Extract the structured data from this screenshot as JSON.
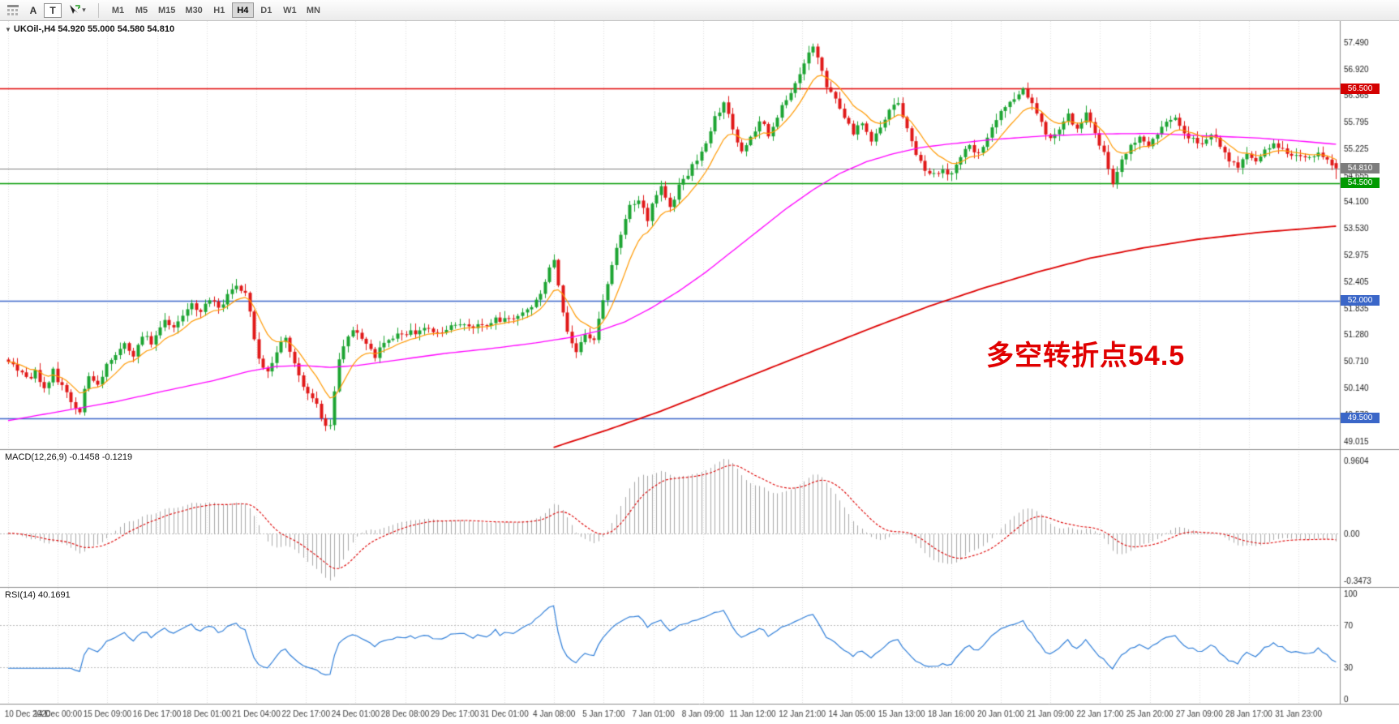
{
  "toolbar": {
    "grid_icon": "chart-list-grid",
    "annotate_button": "A",
    "text_button": "T",
    "cursor_caret": "▾",
    "timeframes": [
      "M1",
      "M5",
      "M15",
      "M30",
      "H1",
      "H4",
      "D1",
      "W1",
      "MN"
    ],
    "active_timeframe": "H4"
  },
  "chart": {
    "title_caret": "▼",
    "title": "UKOil-,H4 54.920 55.000 54.580 54.810",
    "annotation": {
      "text": "多空转折点54.5",
      "color": "#e00000"
    },
    "last_candle": {
      "open": 54.92,
      "high": 55.0,
      "low": 54.58,
      "close": 54.81
    }
  },
  "price_axis": {
    "ticks": [
      "57.490",
      "56.920",
      "56.365",
      "55.795",
      "55.225",
      "54.655",
      "54.100",
      "53.530",
      "52.975",
      "52.405",
      "51.835",
      "51.280",
      "50.710",
      "50.140",
      "49.570",
      "49.015"
    ],
    "badges": [
      {
        "label": "56.500",
        "value": 56.5,
        "bg": "#d40000"
      },
      {
        "label": "54.810",
        "value": 54.81,
        "bg": "#7d7d7d"
      },
      {
        "label": "54.500",
        "value": 54.5,
        "bg": "#009a00"
      },
      {
        "label": "52.000",
        "value": 52.0,
        "bg": "#3a66c8"
      },
      {
        "label": "49.500",
        "value": 49.5,
        "bg": "#3a66c8"
      }
    ]
  },
  "indicators": {
    "macd": {
      "label": "MACD(12,26,9) -0.1458 -0.1219",
      "params": {
        "fast": 12,
        "slow": 26,
        "signal": 9
      },
      "current_macd": -0.1458,
      "current_signal": -0.1219,
      "axis": {
        "max": "0.9604",
        "zero": "0.00",
        "min": "-0.3473"
      }
    },
    "rsi": {
      "label": "RSI(14) 40.1691",
      "period": 14,
      "current": 40.1691,
      "axis": [
        "100",
        "70",
        "30",
        "0"
      ],
      "levels": [
        70,
        30
      ]
    }
  },
  "time_axis": {
    "labels": [
      "10 Dec 2020",
      "14 Dec 00:00",
      "15 Dec 09:00",
      "16 Dec 17:00",
      "18 Dec 01:00",
      "21 Dec 04:00",
      "22 Dec 17:00",
      "24 Dec 01:00",
      "28 Dec 08:00",
      "29 Dec 17:00",
      "31 Dec 01:00",
      "4 Jan 08:00",
      "5 Jan 17:00",
      "7 Jan 01:00",
      "8 Jan 09:00",
      "11 Jan 12:00",
      "12 Jan 21:00",
      "14 Jan 05:00",
      "15 Jan 13:00",
      "18 Jan 16:00",
      "20 Jan 01:00",
      "21 Jan 09:00",
      "22 Jan 17:00",
      "25 Jan 20:00",
      "27 Jan 09:00",
      "28 Jan 17:00",
      "31 Jan 23:00"
    ]
  },
  "chart_data": {
    "type": "candlestick",
    "symbol": "UKOil-",
    "timeframe": "H4",
    "candles_count": 298,
    "seed": 20210131,
    "ylim": [
      49.015,
      57.49
    ],
    "price_path": [
      [
        0,
        50.7
      ],
      [
        2,
        50.55
      ],
      [
        4,
        50.35
      ],
      [
        6,
        50.45
      ],
      [
        8,
        50.15
      ],
      [
        10,
        50.5
      ],
      [
        12,
        50.15
      ],
      [
        14,
        49.9
      ],
      [
        16,
        49.62
      ],
      [
        17,
        50.05
      ],
      [
        18,
        50.4
      ],
      [
        20,
        50.2
      ],
      [
        22,
        50.6
      ],
      [
        24,
        50.9
      ],
      [
        26,
        51.05
      ],
      [
        28,
        50.85
      ],
      [
        30,
        51.25
      ],
      [
        32,
        51.1
      ],
      [
        33,
        51.3
      ],
      [
        35,
        51.55
      ],
      [
        37,
        51.4
      ],
      [
        39,
        51.65
      ],
      [
        41,
        51.9
      ],
      [
        43,
        51.75
      ],
      [
        45,
        52.0
      ],
      [
        47,
        51.85
      ],
      [
        49,
        52.1
      ],
      [
        51,
        52.28
      ],
      [
        53,
        52.15
      ],
      [
        54,
        51.75
      ],
      [
        56,
        50.7
      ],
      [
        58,
        50.45
      ],
      [
        60,
        50.95
      ],
      [
        62,
        51.2
      ],
      [
        63,
        50.9
      ],
      [
        65,
        50.45
      ],
      [
        66,
        50.15
      ],
      [
        68,
        49.9
      ],
      [
        70,
        49.55
      ],
      [
        71,
        49.28
      ],
      [
        72,
        49.4
      ],
      [
        73,
        50.1
      ],
      [
        74,
        50.75
      ],
      [
        76,
        51.3
      ],
      [
        78,
        51.35
      ],
      [
        80,
        51.05
      ],
      [
        82,
        50.8
      ],
      [
        84,
        51.1
      ],
      [
        86,
        51.25
      ],
      [
        89,
        51.3
      ],
      [
        93,
        51.4
      ],
      [
        97,
        51.3
      ],
      [
        100,
        51.5
      ],
      [
        104,
        51.45
      ],
      [
        108,
        51.55
      ],
      [
        111,
        51.6
      ],
      [
        114,
        51.7
      ],
      [
        117,
        51.85
      ],
      [
        119,
        52.15
      ],
      [
        121,
        52.7
      ],
      [
        122,
        52.9
      ],
      [
        123,
        52.3
      ],
      [
        125,
        51.3
      ],
      [
        127,
        50.9
      ],
      [
        129,
        51.25
      ],
      [
        131,
        51.15
      ],
      [
        133,
        51.95
      ],
      [
        135,
        52.75
      ],
      [
        137,
        53.4
      ],
      [
        139,
        53.95
      ],
      [
        141,
        54.2
      ],
      [
        143,
        53.75
      ],
      [
        144,
        54.1
      ],
      [
        146,
        54.45
      ],
      [
        148,
        54.0
      ],
      [
        150,
        54.4
      ],
      [
        152,
        54.7
      ],
      [
        154,
        54.95
      ],
      [
        156,
        55.4
      ],
      [
        158,
        55.85
      ],
      [
        160,
        56.2
      ],
      [
        162,
        55.6
      ],
      [
        164,
        55.2
      ],
      [
        166,
        55.45
      ],
      [
        168,
        55.8
      ],
      [
        170,
        55.55
      ],
      [
        172,
        55.95
      ],
      [
        174,
        56.25
      ],
      [
        176,
        56.65
      ],
      [
        178,
        57.05
      ],
      [
        180,
        57.4
      ],
      [
        181,
        57.2
      ],
      [
        183,
        56.55
      ],
      [
        185,
        56.3
      ],
      [
        187,
        55.9
      ],
      [
        189,
        55.5
      ],
      [
        191,
        55.8
      ],
      [
        193,
        55.35
      ],
      [
        195,
        55.7
      ],
      [
        197,
        56.05
      ],
      [
        199,
        56.2
      ],
      [
        201,
        55.6
      ],
      [
        203,
        55.1
      ],
      [
        205,
        54.8
      ],
      [
        207,
        54.65
      ],
      [
        209,
        54.75
      ],
      [
        211,
        54.7
      ],
      [
        213,
        55.1
      ],
      [
        215,
        55.3
      ],
      [
        217,
        55.15
      ],
      [
        219,
        55.5
      ],
      [
        221,
        55.85
      ],
      [
        223,
        56.1
      ],
      [
        225,
        56.3
      ],
      [
        227,
        56.45
      ],
      [
        229,
        56.2
      ],
      [
        231,
        55.75
      ],
      [
        233,
        55.4
      ],
      [
        235,
        55.7
      ],
      [
        237,
        55.95
      ],
      [
        239,
        55.6
      ],
      [
        241,
        56.0
      ],
      [
        243,
        55.55
      ],
      [
        245,
        55.2
      ],
      [
        247,
        54.45
      ],
      [
        249,
        55.0
      ],
      [
        251,
        55.25
      ],
      [
        253,
        55.45
      ],
      [
        255,
        55.3
      ],
      [
        257,
        55.5
      ],
      [
        259,
        55.75
      ],
      [
        261,
        55.85
      ],
      [
        263,
        55.55
      ],
      [
        265,
        55.4
      ],
      [
        267,
        55.3
      ],
      [
        269,
        55.5
      ],
      [
        271,
        55.25
      ],
      [
        273,
        55.0
      ],
      [
        275,
        54.9
      ],
      [
        277,
        55.1
      ],
      [
        279,
        54.95
      ],
      [
        281,
        55.15
      ],
      [
        283,
        55.3
      ],
      [
        285,
        55.2
      ],
      [
        287,
        55.05
      ],
      [
        289,
        55.1
      ],
      [
        291,
        55.0
      ],
      [
        293,
        55.15
      ],
      [
        295,
        54.95
      ],
      [
        297,
        54.81
      ]
    ],
    "ma_mid_magenta": [
      [
        0,
        49.45
      ],
      [
        12,
        49.65
      ],
      [
        24,
        49.85
      ],
      [
        36,
        50.1
      ],
      [
        46,
        50.3
      ],
      [
        54,
        50.5
      ],
      [
        60,
        50.6
      ],
      [
        66,
        50.62
      ],
      [
        72,
        50.58
      ],
      [
        78,
        50.62
      ],
      [
        88,
        50.75
      ],
      [
        98,
        50.88
      ],
      [
        108,
        50.98
      ],
      [
        118,
        51.1
      ],
      [
        126,
        51.22
      ],
      [
        132,
        51.35
      ],
      [
        138,
        51.55
      ],
      [
        144,
        51.85
      ],
      [
        150,
        52.2
      ],
      [
        156,
        52.6
      ],
      [
        162,
        53.05
      ],
      [
        168,
        53.5
      ],
      [
        174,
        53.95
      ],
      [
        180,
        54.35
      ],
      [
        186,
        54.7
      ],
      [
        192,
        54.95
      ],
      [
        198,
        55.12
      ],
      [
        204,
        55.25
      ],
      [
        210,
        55.32
      ],
      [
        220,
        55.42
      ],
      [
        232,
        55.5
      ],
      [
        244,
        55.54
      ],
      [
        256,
        55.55
      ],
      [
        268,
        55.5
      ],
      [
        280,
        55.45
      ],
      [
        290,
        55.38
      ],
      [
        297,
        55.32
      ]
    ],
    "ma_slow_red": [
      [
        122,
        48.88
      ],
      [
        134,
        49.25
      ],
      [
        146,
        49.65
      ],
      [
        158,
        50.1
      ],
      [
        170,
        50.55
      ],
      [
        182,
        51.0
      ],
      [
        194,
        51.45
      ],
      [
        206,
        51.88
      ],
      [
        218,
        52.26
      ],
      [
        230,
        52.6
      ],
      [
        242,
        52.9
      ],
      [
        254,
        53.12
      ],
      [
        266,
        53.3
      ],
      [
        280,
        53.45
      ],
      [
        297,
        53.58
      ]
    ],
    "ma_fast_orange_period": 10,
    "hlines": [
      {
        "price": 56.5,
        "color": "#e00000",
        "width": 1.4
      },
      {
        "price": 54.81,
        "color": "#808080",
        "width": 1.0
      },
      {
        "price": 54.5,
        "color": "#009a00",
        "width": 1.4
      },
      {
        "price": 52.0,
        "color": "#3a66c8",
        "width": 1.4
      },
      {
        "price": 49.5,
        "color": "#3a66c8",
        "width": 1.4
      }
    ]
  },
  "colors": {
    "up": "#1ca432",
    "down": "#e01818",
    "ma_fast": "#ff9900",
    "ma_mid": "#ff00ff",
    "ma_slow": "#dd0000",
    "macd_hist": "#a8a8a8",
    "macd_signal": "#dd0000",
    "rsi_line": "#2f7ed8",
    "grid": "#dedede",
    "level_dotted": "#bcbcbc",
    "panel_border": "#8c8c8c",
    "axis_text": "#1c1c1c",
    "time_text": "#3a3a3a"
  }
}
